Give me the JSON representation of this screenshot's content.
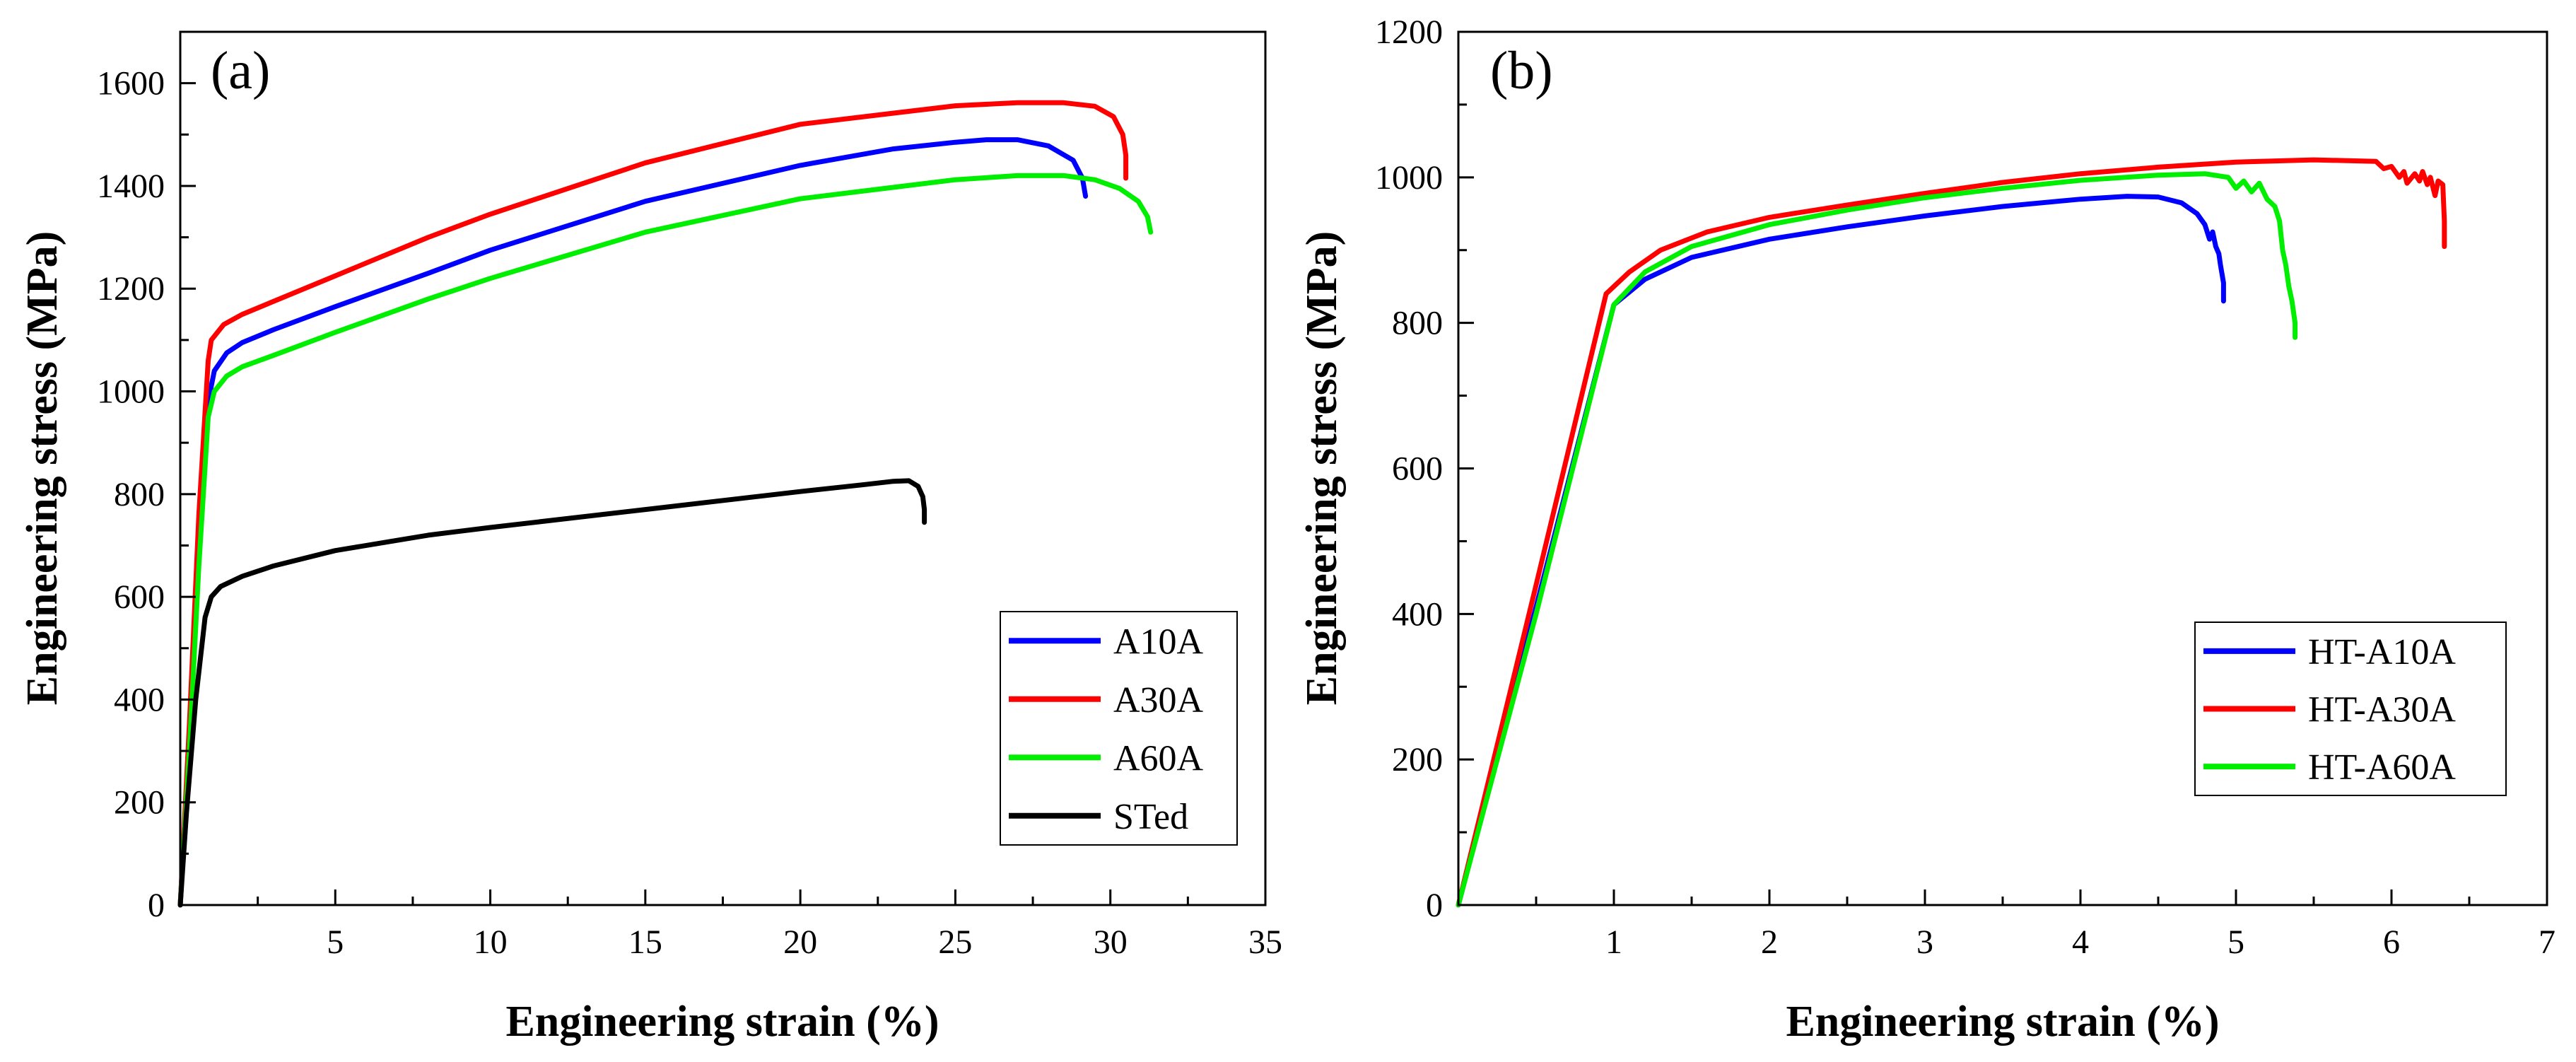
{
  "chart_data": [
    {
      "type": "line",
      "panel_label": "(a)",
      "xlabel": "Engineering strain (%)",
      "ylabel": "Engineering stress (MPa)",
      "xlim": [
        0,
        35
      ],
      "ylim": [
        0,
        1700
      ],
      "x_ticks": [
        5,
        10,
        15,
        20,
        25,
        30,
        35
      ],
      "y_ticks": [
        0,
        200,
        400,
        600,
        800,
        1000,
        1200,
        1400,
        1600
      ],
      "legend_position": "bottom-right",
      "series": [
        {
          "name": "A10A",
          "color": "#0000ff",
          "x": [
            0,
            0.3,
            0.6,
            0.9,
            1.1,
            1.5,
            2,
            3,
            5,
            8,
            10,
            15,
            20,
            23,
            25,
            26,
            27,
            28,
            28.8,
            29.1,
            29.2
          ],
          "y": [
            0,
            330,
            700,
            980,
            1040,
            1075,
            1095,
            1120,
            1165,
            1230,
            1275,
            1370,
            1440,
            1472,
            1485,
            1490,
            1490,
            1478,
            1450,
            1415,
            1380
          ]
        },
        {
          "name": "A30A",
          "color": "#ff0000",
          "x": [
            0,
            0.3,
            0.6,
            0.9,
            1.0,
            1.4,
            2,
            3,
            5,
            8,
            10,
            15,
            20,
            25,
            27,
            28.5,
            29.5,
            30.1,
            30.4,
            30.5,
            30.5
          ],
          "y": [
            0,
            360,
            760,
            1060,
            1100,
            1130,
            1150,
            1175,
            1225,
            1300,
            1345,
            1445,
            1520,
            1556,
            1562,
            1562,
            1555,
            1535,
            1500,
            1460,
            1415
          ]
        },
        {
          "name": "A60A",
          "color": "#00ee00",
          "x": [
            0,
            0.3,
            0.6,
            0.9,
            1.1,
            1.5,
            2,
            3,
            5,
            8,
            10,
            15,
            20,
            25,
            27,
            28.5,
            29.5,
            30.3,
            30.9,
            31.2,
            31.3
          ],
          "y": [
            0,
            310,
            660,
            950,
            1000,
            1030,
            1048,
            1070,
            1115,
            1180,
            1220,
            1310,
            1375,
            1412,
            1420,
            1420,
            1412,
            1395,
            1370,
            1340,
            1310
          ]
        },
        {
          "name": "STed",
          "color": "#000000",
          "x": [
            0,
            0.2,
            0.5,
            0.8,
            1.0,
            1.3,
            2,
            3,
            5,
            8,
            10,
            15,
            20,
            22,
            23,
            23.5,
            23.8,
            23.95,
            24.0,
            24.0
          ],
          "y": [
            0,
            180,
            400,
            560,
            600,
            620,
            640,
            660,
            690,
            720,
            735,
            770,
            805,
            818,
            825,
            826,
            815,
            795,
            770,
            745
          ]
        }
      ]
    },
    {
      "type": "line",
      "panel_label": "(b)",
      "xlabel": "Engineering strain (%)",
      "ylabel": "Engineering stress (MPa)",
      "xlim": [
        0,
        7
      ],
      "ylim": [
        0,
        1200
      ],
      "x_ticks": [
        1,
        2,
        3,
        4,
        5,
        6,
        7
      ],
      "y_ticks": [
        0,
        200,
        400,
        600,
        800,
        1000,
        1200
      ],
      "legend_position": "bottom-right",
      "series": [
        {
          "name": "HT-A10A",
          "color": "#0000ff",
          "x": [
            0,
            0.5,
            1.0,
            1.2,
            1.5,
            2,
            2.5,
            3,
            3.5,
            4,
            4.3,
            4.5,
            4.65,
            4.75,
            4.8,
            4.83,
            4.85,
            4.87,
            4.89,
            4.9,
            4.92,
            4.92
          ],
          "y": [
            0,
            410,
            825,
            860,
            890,
            915,
            932,
            947,
            960,
            970,
            974,
            973,
            965,
            950,
            935,
            915,
            925,
            905,
            895,
            880,
            855,
            830
          ]
        },
        {
          "name": "HT-A30A",
          "color": "#ff0000",
          "x": [
            0,
            0.5,
            0.95,
            1.1,
            1.3,
            1.6,
            2,
            2.5,
            3,
            3.5,
            4,
            4.5,
            5,
            5.5,
            5.9,
            5.95,
            6.0,
            6.05,
            6.08,
            6.1,
            6.15,
            6.18,
            6.2,
            6.23,
            6.25,
            6.28,
            6.3,
            6.33,
            6.34,
            6.34
          ],
          "y": [
            0,
            440,
            840,
            870,
            900,
            925,
            945,
            962,
            978,
            993,
            1005,
            1014,
            1021,
            1024,
            1022,
            1012,
            1015,
            1000,
            1008,
            992,
            1005,
            995,
            1008,
            990,
            1000,
            975,
            995,
            990,
            940,
            905
          ]
        },
        {
          "name": "HT-A60A",
          "color": "#00ee00",
          "x": [
            0,
            0.5,
            1.0,
            1.2,
            1.5,
            2,
            2.5,
            3,
            3.5,
            4,
            4.5,
            4.8,
            4.95,
            5.0,
            5.05,
            5.1,
            5.15,
            5.2,
            5.25,
            5.28,
            5.3,
            5.32,
            5.34,
            5.36,
            5.38,
            5.38
          ],
          "y": [
            0,
            400,
            825,
            870,
            905,
            935,
            955,
            972,
            985,
            996,
            1003,
            1005,
            1000,
            985,
            995,
            980,
            992,
            970,
            960,
            940,
            900,
            880,
            850,
            830,
            800,
            780
          ]
        }
      ]
    }
  ]
}
